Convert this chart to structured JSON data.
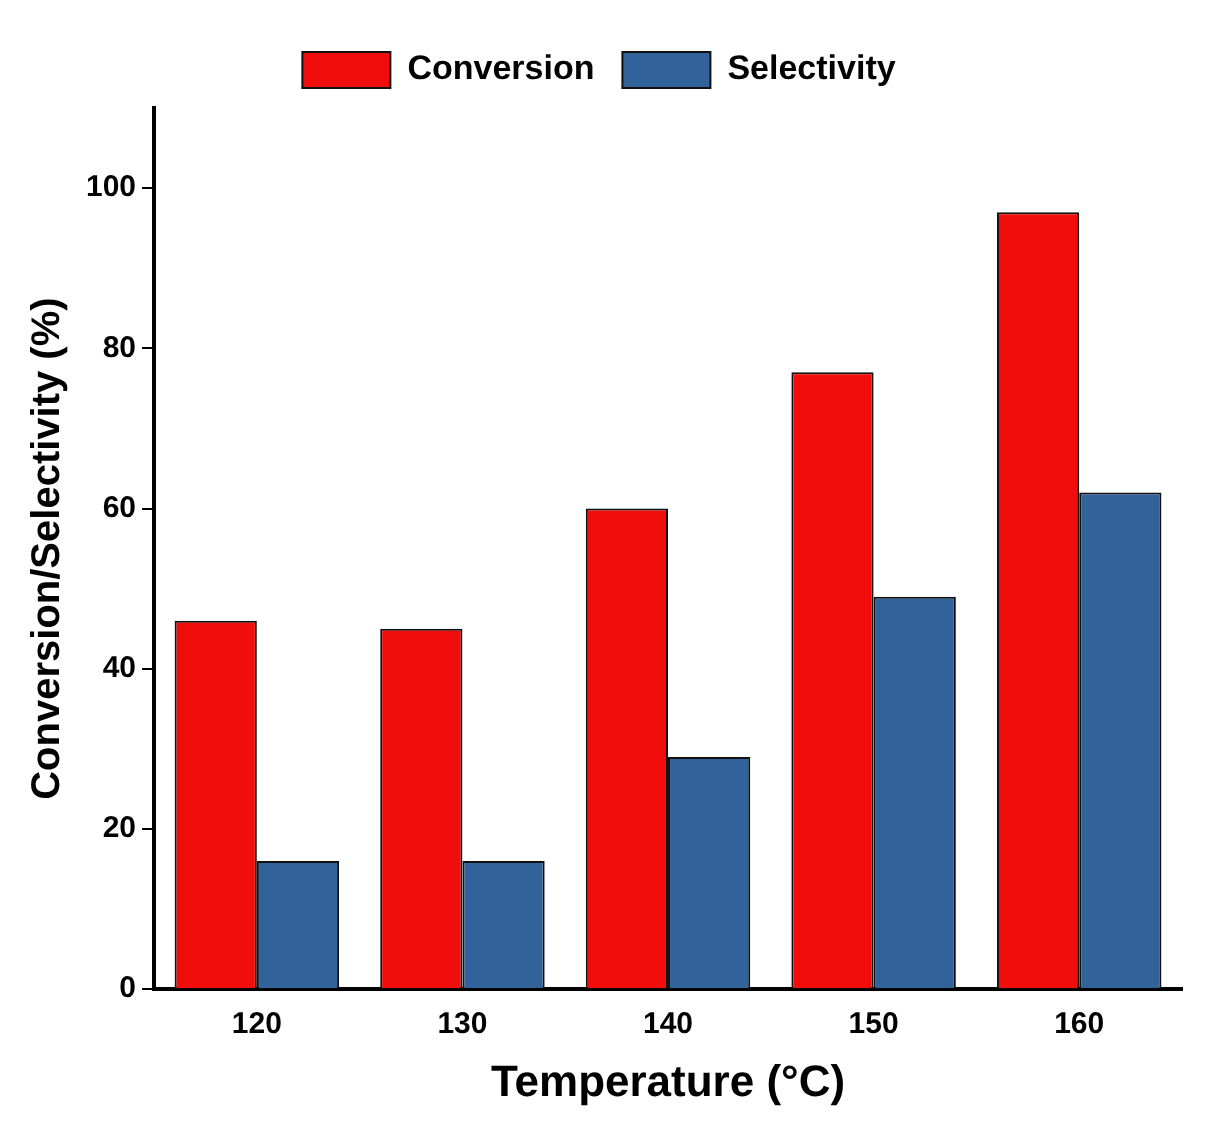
{
  "chart_data": {
    "type": "bar",
    "xlabel": "Temperature (°C)",
    "ylabel": "Conversion/Selectivity (%)",
    "categories": [
      "120",
      "130",
      "140",
      "150",
      "160"
    ],
    "series": [
      {
        "name": "Conversion",
        "color": "#f20d0d",
        "values": [
          46,
          45,
          60,
          77,
          97
        ]
      },
      {
        "name": "Selectivity",
        "color": "#316299",
        "values": [
          16,
          16,
          29,
          49,
          62
        ]
      }
    ],
    "ylim": [
      0,
      110
    ],
    "yticks": [
      0,
      20,
      40,
      60,
      80,
      100
    ],
    "grid": false,
    "legend": "top"
  }
}
